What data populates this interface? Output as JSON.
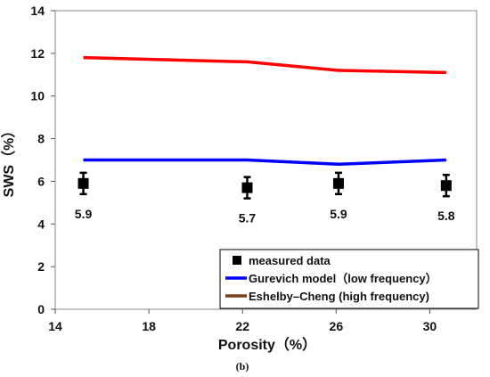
{
  "chart_data": {
    "type": "line",
    "xlabel": "Porosity（%）",
    "ylabel": "SWS（%）",
    "xlim": [
      14,
      32
    ],
    "ylim": [
      0,
      14
    ],
    "xticks": [
      14,
      18,
      22,
      26,
      30
    ],
    "yticks": [
      0,
      2,
      4,
      6,
      8,
      10,
      12,
      14
    ],
    "grid": false,
    "legend_position": "bottom-right",
    "series": [
      {
        "name": "measured data",
        "kind": "scatter",
        "marker": "square",
        "color": "#000000",
        "x": [
          15.2,
          22.2,
          26.1,
          30.7
        ],
        "y": [
          5.9,
          5.7,
          5.9,
          5.8
        ],
        "error": [
          0.5,
          0.5,
          0.5,
          0.5
        ],
        "labels": [
          "5.9",
          "5.7",
          "5.9",
          "5.8"
        ]
      },
      {
        "name": "Gurevich model（low frequency）",
        "kind": "line",
        "color": "#0000ff",
        "x": [
          15.2,
          22.2,
          26.1,
          30.7
        ],
        "y": [
          7.0,
          7.0,
          6.8,
          7.0
        ]
      },
      {
        "name": "Eshelby–Cheng  (high frequency)",
        "kind": "line",
        "color": "#ff0000",
        "legend_color": "#7b3f1e",
        "x": [
          15.2,
          22.2,
          26.1,
          30.7
        ],
        "y": [
          11.8,
          11.6,
          11.2,
          11.1
        ]
      }
    ]
  },
  "caption": "(b)"
}
